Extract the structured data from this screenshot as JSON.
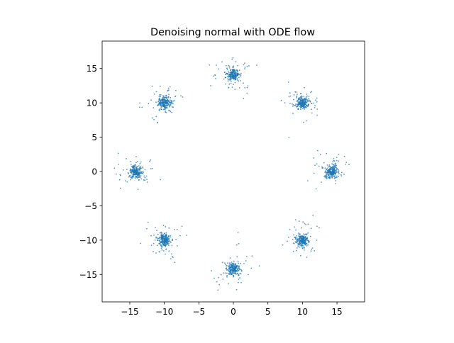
{
  "chart_data": {
    "type": "scatter",
    "title": "Denoising normal with ODE flow",
    "xlabel": "",
    "ylabel": "",
    "xlim": [
      -19,
      19
    ],
    "ylim": [
      -19,
      19
    ],
    "xticks": [
      -15,
      -10,
      -5,
      0,
      5,
      10,
      15
    ],
    "yticks": [
      -15,
      -10,
      -5,
      0,
      5,
      10,
      15
    ],
    "grid": false,
    "legend": "none",
    "series": [
      {
        "color": "#1f77b4",
        "cluster_centers": [
          [
            0,
            14.1
          ],
          [
            10,
            10
          ],
          [
            14.2,
            0
          ],
          [
            10,
            -10
          ],
          [
            0,
            -14.2
          ],
          [
            -10,
            -10
          ],
          [
            -14.2,
            0
          ],
          [
            -10,
            10
          ]
        ],
        "points_per_cluster": 260,
        "core_spread": 0.45,
        "outlier_spread": 1.4
      }
    ]
  }
}
